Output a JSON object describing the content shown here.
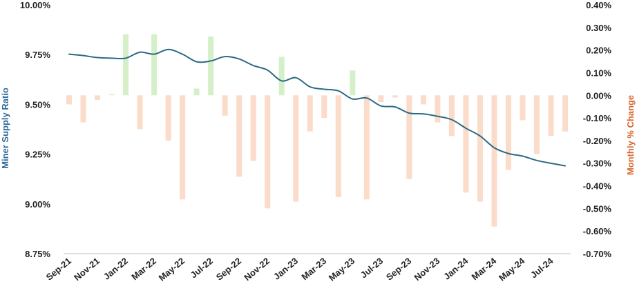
{
  "chart_data": {
    "type": "bar+line",
    "title": "",
    "x": [
      "Sep-21",
      "Oct-21",
      "Nov-21",
      "Dec-21",
      "Jan-22",
      "Feb-22",
      "Mar-22",
      "Apr-22",
      "May-22",
      "Jun-22",
      "Jul-22",
      "Aug-22",
      "Sep-22",
      "Oct-22",
      "Nov-22",
      "Dec-22",
      "Jan-23",
      "Feb-23",
      "Mar-23",
      "Apr-23",
      "May-23",
      "Jun-23",
      "Jul-23",
      "Aug-23",
      "Sep-23",
      "Oct-23",
      "Nov-23",
      "Dec-23",
      "Jan-24",
      "Feb-24",
      "Mar-24",
      "Apr-24",
      "May-24",
      "Jun-24",
      "Jul-24",
      "Aug-24"
    ],
    "x_tick_labels": [
      "Sep-21",
      "Nov-21",
      "Jan-22",
      "Mar-22",
      "May-22",
      "Jul-22",
      "Sep-22",
      "Nov-22",
      "Jan-23",
      "Mar-23",
      "May-23",
      "Jul-23",
      "Sep-23",
      "Nov-23",
      "Jan-24",
      "Mar-24",
      "May-24",
      "Jul-24"
    ],
    "series": [
      {
        "name": "",
        "axis": "left",
        "type": "line",
        "color": "#2b6a85",
        "values": [
          9.752,
          9.745,
          9.735,
          9.732,
          9.732,
          9.762,
          9.752,
          9.776,
          9.752,
          9.714,
          9.718,
          9.74,
          9.728,
          9.695,
          9.672,
          9.618,
          9.634,
          9.588,
          9.576,
          9.568,
          9.527,
          9.532,
          9.492,
          9.487,
          9.456,
          9.452,
          9.44,
          9.423,
          9.38,
          9.341,
          9.282,
          9.253,
          9.24,
          9.218,
          9.204,
          9.191
        ]
      },
      {
        "name": "",
        "axis": "right",
        "type": "bar",
        "color_positive": "#d5f0c9",
        "color_negative": "#fbdcca",
        "values": [
          -0.04,
          -0.12,
          -0.02,
          0.005,
          0.27,
          -0.15,
          0.27,
          -0.2,
          -0.46,
          0.03,
          0.26,
          -0.09,
          -0.36,
          -0.29,
          -0.5,
          0.17,
          -0.47,
          -0.16,
          -0.1,
          -0.45,
          0.11,
          -0.46,
          -0.03,
          -0.01,
          -0.37,
          -0.04,
          -0.12,
          -0.18,
          -0.43,
          -0.47,
          -0.58,
          -0.33,
          -0.11,
          -0.26,
          -0.18,
          -0.16
        ]
      }
    ],
    "y_left": {
      "label": "Miner Supply Ratio",
      "ylim": [
        8.75,
        10.0
      ],
      "ticks": [
        10.0,
        9.75,
        9.5,
        9.25,
        9.0,
        8.75
      ],
      "tick_labels": [
        "10.00%",
        "9.75%",
        "9.50%",
        "9.25%",
        "9.00%",
        "8.75%"
      ]
    },
    "y_right": {
      "label": "Monthly % Change",
      "ylim": [
        -0.7,
        0.4
      ],
      "ticks": [
        0.4,
        0.3,
        0.2,
        0.1,
        0.0,
        -0.1,
        -0.2,
        -0.3,
        -0.4,
        -0.5,
        -0.6,
        -0.7
      ],
      "tick_labels": [
        "0.40%",
        "0.30%",
        "0.20%",
        "0.10%",
        "0.00%",
        "-0.10%",
        "-0.20%",
        "-0.30%",
        "-0.40%",
        "-0.50%",
        "-0.60%",
        "-0.70%"
      ]
    },
    "grid": false,
    "legend": "none"
  }
}
